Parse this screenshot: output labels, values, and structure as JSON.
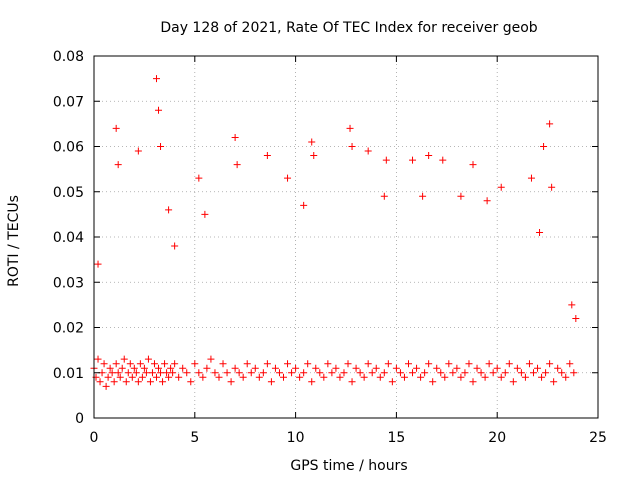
{
  "chart_data": {
    "type": "scatter",
    "title": "Day 128 of 2021, Rate Of TEC Index for receiver geob",
    "xlabel": "GPS time / hours",
    "ylabel": "ROTI / TECUs",
    "xlim": [
      0,
      25
    ],
    "ylim": [
      0,
      0.08
    ],
    "xticks": [
      0,
      5,
      10,
      15,
      20,
      25
    ],
    "xtick_labels": [
      "0",
      "5",
      "10",
      "15",
      "20",
      "25"
    ],
    "yticks": [
      0,
      0.01,
      0.02,
      0.03,
      0.04,
      0.05,
      0.06,
      0.07,
      0.08
    ],
    "ytick_labels": [
      "0",
      "0.01",
      "0.02",
      "0.03",
      "0.04",
      "0.05",
      "0.06",
      "0.07",
      "0.08"
    ],
    "grid": true,
    "marker": "+",
    "color": "#ff0000",
    "series": [
      {
        "x": [
          0.0,
          0.1,
          0.2,
          0.3,
          0.4,
          0.5,
          0.6,
          0.7,
          0.8,
          0.9,
          1.0,
          1.1,
          1.2,
          1.3,
          1.4,
          1.5,
          1.6,
          1.7,
          1.8,
          1.9,
          2.0,
          2.1,
          2.2,
          2.3,
          2.4,
          2.5,
          2.6,
          2.7,
          2.8,
          2.9,
          3.0,
          3.1,
          3.2,
          3.3,
          3.4,
          3.5,
          3.6,
          3.7,
          3.8,
          3.9,
          4.0,
          4.2,
          4.4,
          4.6,
          4.8,
          5.0,
          5.2,
          5.4,
          5.6,
          5.8,
          6.0,
          6.2,
          6.4,
          6.6,
          6.8,
          7.0,
          7.2,
          7.4,
          7.6,
          7.8,
          8.0,
          8.2,
          8.4,
          8.6,
          8.8,
          9.0,
          9.2,
          9.4,
          9.6,
          9.8,
          10.0,
          10.2,
          10.4,
          10.6,
          10.8,
          11.0,
          11.2,
          11.4,
          11.6,
          11.8,
          12.0,
          12.2,
          12.4,
          12.6,
          12.8,
          13.0,
          13.2,
          13.4,
          13.6,
          13.8,
          14.0,
          14.2,
          14.4,
          14.6,
          14.8,
          15.0,
          15.2,
          15.4,
          15.6,
          15.8,
          16.0,
          16.2,
          16.4,
          16.6,
          16.8,
          17.0,
          17.2,
          17.4,
          17.6,
          17.8,
          18.0,
          18.2,
          18.4,
          18.6,
          18.8,
          19.0,
          19.2,
          19.4,
          19.6,
          19.8,
          20.0,
          20.2,
          20.4,
          20.6,
          20.8,
          21.0,
          21.2,
          21.4,
          21.6,
          21.8,
          22.0,
          22.2,
          22.4,
          22.6,
          22.8,
          23.0,
          23.2,
          23.4,
          23.6,
          23.8,
          0.2,
          1.1,
          1.2,
          2.2,
          3.1,
          3.2,
          3.3,
          3.7,
          4.0,
          5.2,
          5.5,
          7.0,
          7.1,
          8.6,
          9.6,
          10.4,
          10.8,
          10.9,
          12.7,
          12.8,
          13.6,
          14.4,
          14.5,
          15.8,
          16.3,
          16.6,
          17.3,
          18.2,
          18.8,
          19.5,
          20.2,
          21.7,
          22.1,
          22.3,
          22.6,
          22.7,
          23.7,
          23.9
        ],
        "y": [
          0.011,
          0.009,
          0.013,
          0.008,
          0.01,
          0.012,
          0.007,
          0.009,
          0.011,
          0.01,
          0.008,
          0.012,
          0.01,
          0.009,
          0.011,
          0.013,
          0.008,
          0.01,
          0.012,
          0.009,
          0.011,
          0.01,
          0.008,
          0.012,
          0.009,
          0.011,
          0.01,
          0.013,
          0.008,
          0.01,
          0.012,
          0.009,
          0.011,
          0.01,
          0.008,
          0.012,
          0.01,
          0.009,
          0.011,
          0.01,
          0.012,
          0.009,
          0.011,
          0.01,
          0.008,
          0.012,
          0.01,
          0.009,
          0.011,
          0.013,
          0.01,
          0.009,
          0.012,
          0.01,
          0.008,
          0.011,
          0.01,
          0.009,
          0.012,
          0.01,
          0.011,
          0.009,
          0.01,
          0.012,
          0.008,
          0.011,
          0.01,
          0.009,
          0.012,
          0.01,
          0.011,
          0.009,
          0.01,
          0.012,
          0.008,
          0.011,
          0.01,
          0.009,
          0.012,
          0.01,
          0.011,
          0.009,
          0.01,
          0.012,
          0.008,
          0.011,
          0.01,
          0.009,
          0.012,
          0.01,
          0.011,
          0.009,
          0.01,
          0.012,
          0.008,
          0.011,
          0.01,
          0.009,
          0.012,
          0.01,
          0.011,
          0.009,
          0.01,
          0.012,
          0.008,
          0.011,
          0.01,
          0.009,
          0.012,
          0.01,
          0.011,
          0.009,
          0.01,
          0.012,
          0.008,
          0.011,
          0.01,
          0.009,
          0.012,
          0.01,
          0.011,
          0.009,
          0.01,
          0.012,
          0.008,
          0.011,
          0.01,
          0.009,
          0.012,
          0.01,
          0.011,
          0.009,
          0.01,
          0.012,
          0.008,
          0.011,
          0.01,
          0.009,
          0.012,
          0.01,
          0.034,
          0.064,
          0.056,
          0.059,
          0.075,
          0.068,
          0.06,
          0.046,
          0.038,
          0.053,
          0.045,
          0.062,
          0.056,
          0.058,
          0.053,
          0.047,
          0.061,
          0.058,
          0.064,
          0.06,
          0.059,
          0.049,
          0.057,
          0.057,
          0.049,
          0.058,
          0.057,
          0.049,
          0.056,
          0.048,
          0.051,
          0.053,
          0.041,
          0.06,
          0.065,
          0.051,
          0.025,
          0.022
        ]
      }
    ]
  }
}
